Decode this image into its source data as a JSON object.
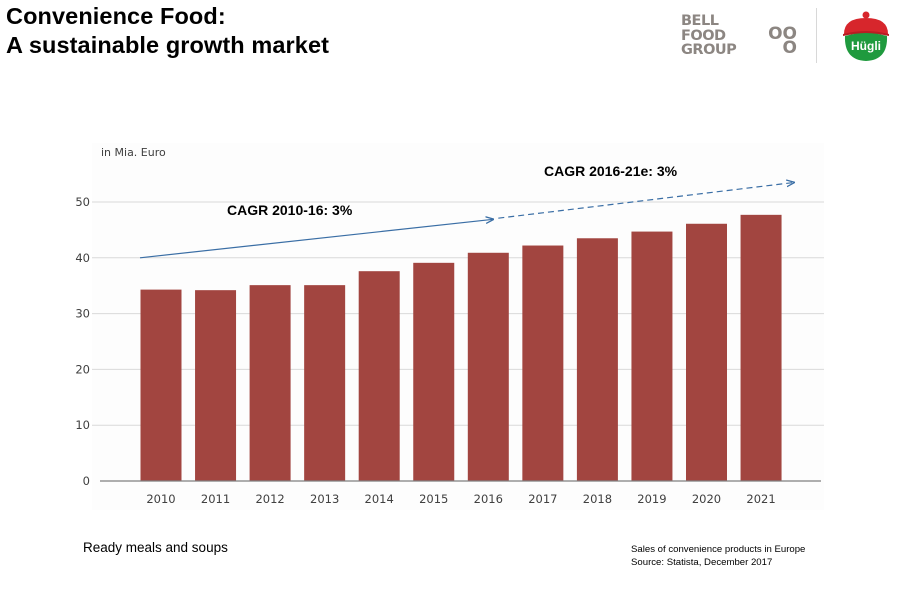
{
  "header": {
    "title_line1": "Convenience Food:",
    "title_line2": "A sustainable growth market"
  },
  "logos": {
    "bell_food_group": [
      "BELL",
      "FOOD",
      "GROUP"
    ],
    "bell_dots": [
      "OO",
      "O"
    ],
    "hugli": "Hügli",
    "hugli_colors": {
      "lid": "#d7262c",
      "bowl": "#1f9a3e",
      "text": "#ffffff"
    }
  },
  "colors": {
    "bar": "#a24540",
    "grid": "#d9d9d9",
    "axis": "#7f7f7f",
    "trend": "#3a6ea5",
    "text": "#000000",
    "tick_text": "#404040"
  },
  "chart_data": {
    "type": "bar",
    "title": "",
    "unit_label": "in Mia. Euro",
    "xlabel": "",
    "ylabel": "in Mia. Euro",
    "categories": [
      "2010",
      "2011",
      "2012",
      "2013",
      "2014",
      "2015",
      "2016",
      "2017",
      "2018",
      "2019",
      "2020",
      "2021"
    ],
    "values": [
      34.3,
      34.2,
      35.1,
      35.1,
      37.6,
      39.1,
      40.9,
      42.2,
      43.5,
      44.7,
      46.1,
      47.7
    ],
    "ylim": [
      0,
      50
    ],
    "yticks": [
      0,
      10,
      20,
      30,
      40,
      50
    ],
    "ytick_labels": [
      "0",
      "10",
      "20",
      "30",
      "40",
      "50"
    ],
    "grid": true,
    "legend": "none",
    "annotations": [
      {
        "text": "CAGR 2010-16: 3%",
        "style": "solid-arrow",
        "from": {
          "x": "2010",
          "y": 40
        },
        "to": {
          "x": "2016",
          "y": 46.9
        }
      },
      {
        "text": "CAGR 2016-21e: 3%",
        "style": "dashed-arrow",
        "from": {
          "x": "2016",
          "y": 47.1
        },
        "to": {
          "x": "2021+",
          "y": 53.5
        }
      }
    ]
  },
  "footer": {
    "left": "Ready meals and soups",
    "right_line1": "Sales of convenience products in Europe",
    "right_line2": "Source: Statista, December 2017"
  }
}
